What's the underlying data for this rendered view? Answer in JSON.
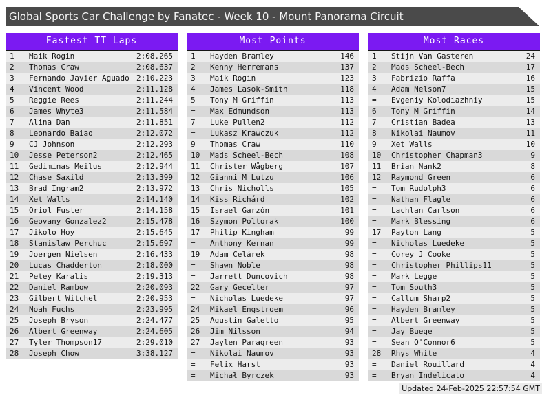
{
  "page": {
    "title": "Global Sports Car Challenge by Fanatec - Week 10 - Mount Panorama Circuit",
    "footer": "Updated 24-Feb-2025 22:57:54 GMT"
  },
  "colors": {
    "top_bar": "#4a4a4a",
    "panel_header": "#7b1af2",
    "row_odd": "#ececec",
    "row_even": "#d9d9d9",
    "text": "#141414"
  },
  "panels": [
    {
      "title": "Fastest TT Laps",
      "rows": [
        {
          "rank": "1",
          "name": "Maik Rogin",
          "value": "2:08.265"
        },
        {
          "rank": "2",
          "name": "Thomas Craw",
          "value": "2:08.637"
        },
        {
          "rank": "3",
          "name": "Fernando Javier Aguado",
          "value": "2:10.223"
        },
        {
          "rank": "4",
          "name": "Vincent Wood",
          "value": "2:11.128"
        },
        {
          "rank": "5",
          "name": "Reggie Rees",
          "value": "2:11.244"
        },
        {
          "rank": "6",
          "name": "James Whyte3",
          "value": "2:11.584"
        },
        {
          "rank": "7",
          "name": "Alina Dan",
          "value": "2:11.851"
        },
        {
          "rank": "8",
          "name": "Leonardo Baiao",
          "value": "2:12.072"
        },
        {
          "rank": "9",
          "name": "CJ Johnson",
          "value": "2:12.293"
        },
        {
          "rank": "10",
          "name": "Jesse Peterson2",
          "value": "2:12.465"
        },
        {
          "rank": "11",
          "name": "Gediminas Meilus",
          "value": "2:12.944"
        },
        {
          "rank": "12",
          "name": "Chase Saxild",
          "value": "2:13.399"
        },
        {
          "rank": "13",
          "name": "Brad Ingram2",
          "value": "2:13.972"
        },
        {
          "rank": "14",
          "name": "Xet Walls",
          "value": "2:14.140"
        },
        {
          "rank": "15",
          "name": "Oriol Fuster",
          "value": "2:14.158"
        },
        {
          "rank": "16",
          "name": "Geovany Gonzalez2",
          "value": "2:15.478"
        },
        {
          "rank": "17",
          "name": "Jikolo Hoy",
          "value": "2:15.645"
        },
        {
          "rank": "18",
          "name": "Stanislaw Perchuc",
          "value": "2:15.697"
        },
        {
          "rank": "19",
          "name": "Joergen Nielsen",
          "value": "2:16.433"
        },
        {
          "rank": "20",
          "name": "Lucas Chadderton",
          "value": "2:18.000"
        },
        {
          "rank": "21",
          "name": "Petey Karalis",
          "value": "2:19.313"
        },
        {
          "rank": "22",
          "name": "Daniel Rambow",
          "value": "2:20.093"
        },
        {
          "rank": "23",
          "name": "Gilbert Witchel",
          "value": "2:20.953"
        },
        {
          "rank": "24",
          "name": "Noah Fuchs",
          "value": "2:23.995"
        },
        {
          "rank": "25",
          "name": "Joseph Bryson",
          "value": "2:24.477"
        },
        {
          "rank": "26",
          "name": "Albert Greenway",
          "value": "2:24.605"
        },
        {
          "rank": "27",
          "name": "Tyler Thompson17",
          "value": "2:29.010"
        },
        {
          "rank": "28",
          "name": "Joseph Chow",
          "value": "3:38.127"
        }
      ]
    },
    {
      "title": "Most Points",
      "rows": [
        {
          "rank": "1",
          "name": "Hayden Bramley",
          "value": "146"
        },
        {
          "rank": "2",
          "name": "Kenny Herremans",
          "value": "137"
        },
        {
          "rank": "3",
          "name": "Maik Rogin",
          "value": "123"
        },
        {
          "rank": "4",
          "name": "James Lasok-Smith",
          "value": "118"
        },
        {
          "rank": "5",
          "name": "Tony M Griffin",
          "value": "113"
        },
        {
          "rank": "=",
          "name": "Max Edmundson",
          "value": "113"
        },
        {
          "rank": "7",
          "name": "Luke Pullen2",
          "value": "112"
        },
        {
          "rank": "=",
          "name": "Lukasz Krawczuk",
          "value": "112"
        },
        {
          "rank": "9",
          "name": "Thomas Craw",
          "value": "110"
        },
        {
          "rank": "10",
          "name": "Mads Scheel-Bech",
          "value": "108"
        },
        {
          "rank": "11",
          "name": "Christer Wågberg",
          "value": "107"
        },
        {
          "rank": "12",
          "name": "Gianni M Lutzu",
          "value": "106"
        },
        {
          "rank": "13",
          "name": "Chris Nicholls",
          "value": "105"
        },
        {
          "rank": "14",
          "name": "Kiss Richárd",
          "value": "102"
        },
        {
          "rank": "15",
          "name": "Israel Garzón",
          "value": "101"
        },
        {
          "rank": "16",
          "name": "Szymon Poltorak",
          "value": "100"
        },
        {
          "rank": "17",
          "name": "Philip Kingham",
          "value": "99"
        },
        {
          "rank": "=",
          "name": "Anthony Kernan",
          "value": "99"
        },
        {
          "rank": "19",
          "name": "Adam Celárek",
          "value": "98"
        },
        {
          "rank": "=",
          "name": "Shawn Noble",
          "value": "98"
        },
        {
          "rank": "=",
          "name": "Jarrett Duncovich",
          "value": "98"
        },
        {
          "rank": "22",
          "name": "Gary Gecelter",
          "value": "97"
        },
        {
          "rank": "=",
          "name": "Nicholas Luedeke",
          "value": "97"
        },
        {
          "rank": "24",
          "name": "Mikael Engstroem",
          "value": "96"
        },
        {
          "rank": "25",
          "name": "Agustin Galetto",
          "value": "95"
        },
        {
          "rank": "26",
          "name": "Jim Nilsson",
          "value": "94"
        },
        {
          "rank": "27",
          "name": "Jaylen Paragreen",
          "value": "93"
        },
        {
          "rank": "=",
          "name": "Nikolai Naumov",
          "value": "93"
        },
        {
          "rank": "=",
          "name": "Felix Harst",
          "value": "93"
        },
        {
          "rank": "=",
          "name": "Michał Byrczek",
          "value": "93"
        }
      ]
    },
    {
      "title": "Most Races",
      "rows": [
        {
          "rank": "1",
          "name": "Stijn Van Gasteren",
          "value": "24"
        },
        {
          "rank": "2",
          "name": "Mads Scheel-Bech",
          "value": "17"
        },
        {
          "rank": "3",
          "name": "Fabrizio Raffa",
          "value": "16"
        },
        {
          "rank": "4",
          "name": "Adam Nelson7",
          "value": "15"
        },
        {
          "rank": "=",
          "name": "Evgeniy Kolodiazhniy",
          "value": "15"
        },
        {
          "rank": "6",
          "name": "Tony M Griffin",
          "value": "14"
        },
        {
          "rank": "7",
          "name": "Cristian Badea",
          "value": "13"
        },
        {
          "rank": "8",
          "name": "Nikolai Naumov",
          "value": "11"
        },
        {
          "rank": "9",
          "name": "Xet Walls",
          "value": "10"
        },
        {
          "rank": "10",
          "name": "Christopher Chapman3",
          "value": "9"
        },
        {
          "rank": "11",
          "name": "Brian Nank2",
          "value": "8"
        },
        {
          "rank": "12",
          "name": "Raymond Green",
          "value": "6"
        },
        {
          "rank": "=",
          "name": "Tom Rudolph3",
          "value": "6"
        },
        {
          "rank": "=",
          "name": "Nathan Flagle",
          "value": "6"
        },
        {
          "rank": "=",
          "name": "Lachlan Carlson",
          "value": "6"
        },
        {
          "rank": "=",
          "name": "Mark Blessing",
          "value": "6"
        },
        {
          "rank": "17",
          "name": "Payton Lang",
          "value": "5"
        },
        {
          "rank": "=",
          "name": "Nicholas Luedeke",
          "value": "5"
        },
        {
          "rank": "=",
          "name": "Corey J Cooke",
          "value": "5"
        },
        {
          "rank": "=",
          "name": "Christopher Phillips11",
          "value": "5"
        },
        {
          "rank": "=",
          "name": "Mark Legge",
          "value": "5"
        },
        {
          "rank": "=",
          "name": "Tom South3",
          "value": "5"
        },
        {
          "rank": "=",
          "name": "Callum Sharp2",
          "value": "5"
        },
        {
          "rank": "=",
          "name": "Hayden Bramley",
          "value": "5"
        },
        {
          "rank": "=",
          "name": "Albert Greenway",
          "value": "5"
        },
        {
          "rank": "=",
          "name": "Jay Buege",
          "value": "5"
        },
        {
          "rank": "=",
          "name": "Sean O'Connor6",
          "value": "5"
        },
        {
          "rank": "28",
          "name": "Rhys White",
          "value": "4"
        },
        {
          "rank": "=",
          "name": "Daniel Rouillard",
          "value": "4"
        },
        {
          "rank": "=",
          "name": "Bryan Indelicato",
          "value": "4"
        }
      ]
    }
  ]
}
